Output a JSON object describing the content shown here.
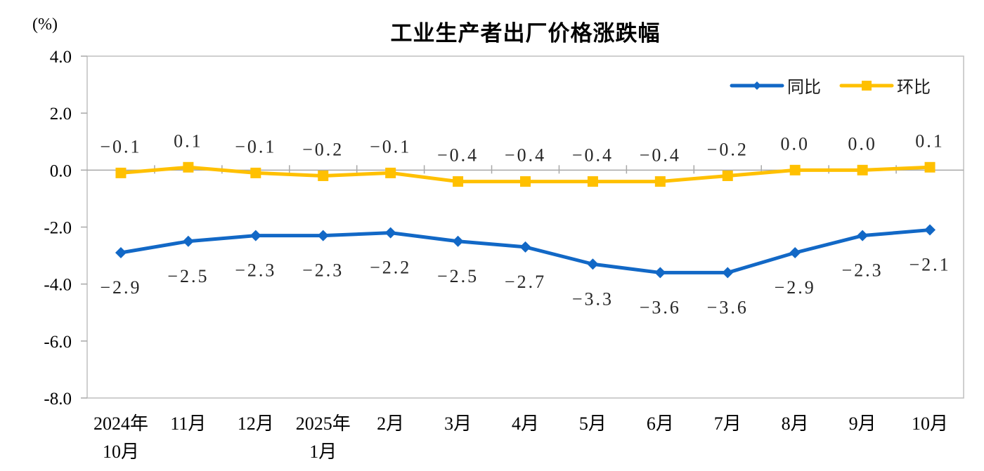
{
  "chart_data": {
    "type": "line",
    "title": "工业生产者出厂价格涨跌幅",
    "unit_label": "(%)",
    "categories": [
      "2024年\n10月",
      "11月",
      "12月",
      "2025年\n1月",
      "2月",
      "3月",
      "4月",
      "5月",
      "6月",
      "7月",
      "8月",
      "9月",
      "10月"
    ],
    "series": [
      {
        "name": "同比",
        "color": "#1268c6",
        "marker": "diamond",
        "label_position": "below",
        "values": [
          -2.9,
          -2.5,
          -2.3,
          -2.3,
          -2.2,
          -2.5,
          -2.7,
          -3.3,
          -3.6,
          -3.6,
          -2.9,
          -2.3,
          -2.1
        ],
        "labels": [
          "-2.9",
          "-2.5",
          "-2.3",
          "-2.3",
          "-2.2",
          "-2.5",
          "-2.7",
          "-3.3",
          "-3.6",
          "-3.6",
          "-2.9",
          "-2.3",
          "-2.1"
        ]
      },
      {
        "name": "环比",
        "color": "#ffc000",
        "marker": "square",
        "label_position": "above",
        "values": [
          -0.1,
          0.1,
          -0.1,
          -0.2,
          -0.1,
          -0.4,
          -0.4,
          -0.4,
          -0.4,
          -0.2,
          0.0,
          0.0,
          0.1
        ],
        "labels": [
          "-0.1",
          "0.1",
          "-0.1",
          "-0.2",
          "-0.1",
          "-0.4",
          "-0.4",
          "-0.4",
          "-0.4",
          "-0.2",
          "0.0",
          "0.0",
          "0.1"
        ]
      }
    ],
    "ylim": [
      -8,
      4
    ],
    "yticks": [
      "4.0",
      "2.0",
      "0.0",
      "-2.0",
      "-4.0",
      "-6.0",
      "-8.0"
    ],
    "legend_position": "top-right",
    "grid": false,
    "frame_color": "#bfbfbf",
    "axis_color": "#a8a8a8",
    "label_color": "#262626"
  }
}
